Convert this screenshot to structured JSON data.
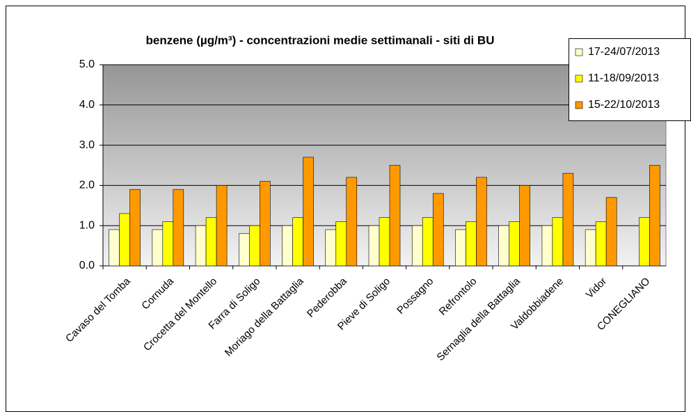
{
  "chart_data": {
    "type": "bar",
    "title": "benzene (µg/m³) - concentrazioni medie settimanali - siti di BU",
    "categories": [
      "Cavaso del Tomba",
      "Cornuda",
      "Crocetta del Montello",
      "Farra di Soligo",
      "Moriago della Battaglia",
      "Pederobba",
      "Pieve di Soligo",
      "Possagno",
      "Refrontolo",
      "Sernaglia della Battaglia",
      "Valdobbiadene",
      "Vidor",
      "CONEGLIANO"
    ],
    "series": [
      {
        "name": "17-24/07/2013",
        "color": "#ffffcc",
        "values": [
          0.9,
          0.9,
          1.0,
          0.8,
          1.0,
          0.9,
          1.0,
          1.0,
          0.9,
          1.0,
          1.0,
          0.9,
          null
        ]
      },
      {
        "name": "11-18/09/2013",
        "color": "#ffff00",
        "values": [
          1.3,
          1.1,
          1.2,
          1.0,
          1.2,
          1.1,
          1.2,
          1.2,
          1.1,
          1.1,
          1.2,
          1.1,
          1.2
        ]
      },
      {
        "name": "15-22/10/2013",
        "color": "#ff9900",
        "values": [
          1.9,
          1.9,
          2.0,
          2.1,
          2.7,
          2.2,
          2.5,
          1.8,
          2.2,
          2.0,
          2.3,
          1.7,
          2.5
        ]
      }
    ],
    "ylim": [
      0,
      5
    ],
    "yticks": [
      {
        "value": 0,
        "label": "0.0"
      },
      {
        "value": 1,
        "label": "1.0"
      },
      {
        "value": 2,
        "label": "2.0"
      },
      {
        "value": 3,
        "label": "3.0"
      },
      {
        "value": 4,
        "label": "4.0"
      },
      {
        "value": 5,
        "label": "5.0"
      }
    ],
    "grid": true,
    "legend": "top-right"
  }
}
